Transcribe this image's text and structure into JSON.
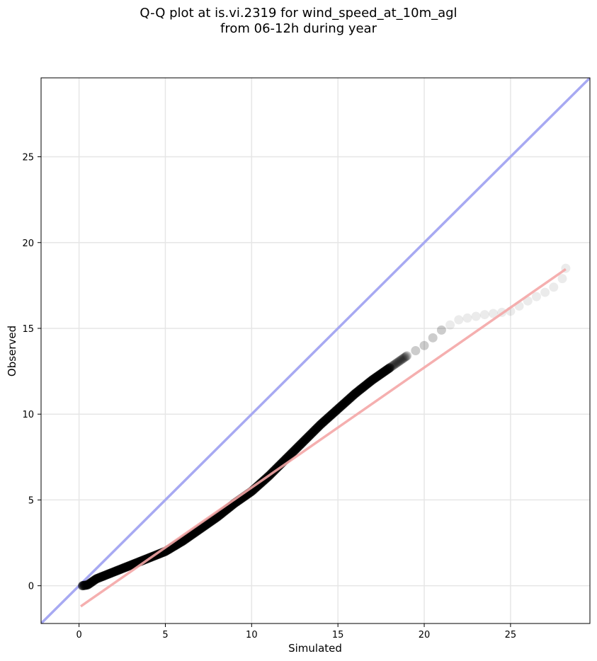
{
  "chart_data": {
    "type": "scatter",
    "title_line1": "Q-Q plot at is.vi.2319 for wind_speed_at_10m_agl",
    "title_line2": "from 06-12h during year",
    "xlabel": "Simulated",
    "ylabel": "Observed",
    "xlim": [
      -2.2,
      29.6
    ],
    "ylim": [
      -2.2,
      29.6
    ],
    "x_ticks": [
      0,
      5,
      10,
      15,
      20,
      25
    ],
    "y_ticks": [
      0,
      5,
      10,
      15,
      20,
      25
    ],
    "grid": true,
    "quantile_curve": {
      "x": [
        0.2,
        0.5,
        1,
        2,
        3,
        4,
        5,
        6,
        7,
        8,
        9,
        10,
        11,
        12,
        13,
        14,
        15,
        16,
        17,
        18,
        19,
        20,
        21,
        22,
        23.5,
        25,
        26,
        27,
        27.5,
        28,
        28.2
      ],
      "y": [
        0.0,
        0.05,
        0.4,
        0.8,
        1.2,
        1.6,
        2.0,
        2.6,
        3.3,
        4.0,
        4.8,
        5.5,
        6.4,
        7.4,
        8.4,
        9.4,
        10.3,
        11.2,
        12.0,
        12.7,
        13.4,
        14.0,
        14.9,
        15.5,
        15.8,
        16.0,
        16.6,
        17.1,
        17.4,
        17.9,
        18.5
      ]
    },
    "fit_line": {
      "x": [
        0.1,
        28.2
      ],
      "y": [
        -1.2,
        18.45
      ],
      "color": "#f4a6a6"
    },
    "identity_line": {
      "x": [
        -2.2,
        29.6
      ],
      "y": [
        -2.2,
        29.6
      ],
      "color": "#a7a9f2"
    },
    "point_color": "#000000"
  }
}
